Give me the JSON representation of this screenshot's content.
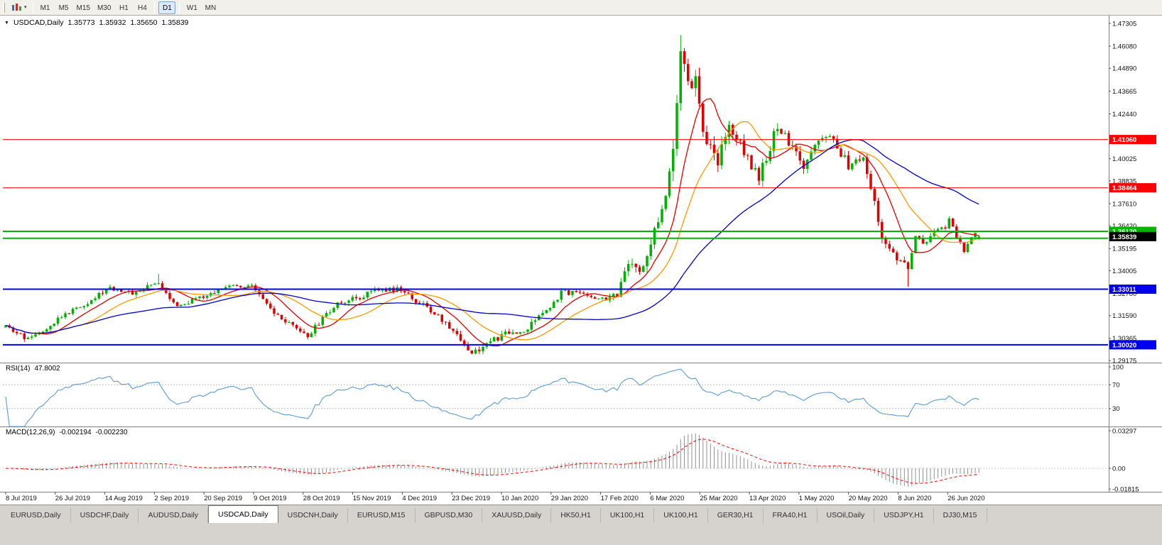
{
  "toolbar": {
    "timeframes": [
      "M1",
      "M5",
      "M15",
      "M30",
      "H1",
      "H4",
      "D1",
      "W1",
      "MN"
    ],
    "active_timeframe": "D1"
  },
  "chart": {
    "title": "USDCAD,Daily",
    "open": "1.35773",
    "high": "1.35932",
    "low": "1.35650",
    "close": "1.35839"
  },
  "rsi": {
    "label": "RSI(14)",
    "value": "47.8002",
    "period": 14,
    "levels": [
      70,
      30
    ],
    "scale_labels": [
      "100",
      "70",
      "30"
    ],
    "line_color": "#5B9BD5"
  },
  "macd": {
    "label": "MACD(12,26,9)",
    "value_main": "-0.002194",
    "value_signal": "-0.002230",
    "fast": 12,
    "slow": 26,
    "signal_period": 9,
    "scale_labels": [
      {
        "text": "0.03297",
        "value": 0.03297
      },
      {
        "text": "0.00",
        "value": 0
      },
      {
        "text": "-0.01815",
        "value": -0.01815
      }
    ],
    "histogram_color": "#909090",
    "signal_color": "#FF0000"
  },
  "tabbar": {
    "active_index": 3,
    "tabs": [
      "EURUSD,Daily",
      "USDCHF,Daily",
      "AUDUSD,Daily",
      "USDCAD,Daily",
      "USDCNH,Daily",
      "EURUSD,M15",
      "GBPUSD,M30",
      "XAUUSD,Daily",
      "HK50,H1",
      "UK100,H1",
      "UK100,H1",
      "GER30,H1",
      "FRA40,H1",
      "USOil,Daily",
      "USDJPY,H1",
      "DJ30,M15"
    ]
  },
  "chart_data": {
    "type": "candlestick",
    "symbol": "USDCAD",
    "timeframe": "Daily",
    "ylim": [
      1.29175,
      1.47305
    ],
    "price_axis_ticks": [
      "1.47305",
      "1.46080",
      "1.44890",
      "1.43665",
      "1.42440",
      "1.40025",
      "1.38835",
      "1.37610",
      "1.36420",
      "1.35195",
      "1.34005",
      "1.32780",
      "1.31590",
      "1.30365",
      "1.29175"
    ],
    "x_axis_dates": [
      "8 Jul 2019",
      "26 Jul 2019",
      "14 Aug 2019",
      "2 Sep 2019",
      "20 Sep 2019",
      "9 Oct 2019",
      "28 Oct 2019",
      "15 Nov 2019",
      "4 Dec 2019",
      "23 Dec 2019",
      "10 Jan 2020",
      "29 Jan 2020",
      "17 Feb 2020",
      "6 Mar 2020",
      "25 Mar 2020",
      "13 Apr 2020",
      "1 May 2020",
      "20 May 2020",
      "8 Jun 2020",
      "26 Jun 2020"
    ],
    "count": 262,
    "close_waypoints": [
      [
        0,
        1.3095
      ],
      [
        5,
        1.304
      ],
      [
        9,
        1.307
      ],
      [
        15,
        1.3155
      ],
      [
        21,
        1.322
      ],
      [
        28,
        1.331
      ],
      [
        34,
        1.328
      ],
      [
        41,
        1.334
      ],
      [
        46,
        1.321
      ],
      [
        54,
        1.3265
      ],
      [
        61,
        1.333
      ],
      [
        66,
        1.331
      ],
      [
        73,
        1.315
      ],
      [
        79,
        1.307
      ],
      [
        81,
        1.305
      ],
      [
        89,
        1.323
      ],
      [
        94,
        1.325
      ],
      [
        99,
        1.33
      ],
      [
        105,
        1.33
      ],
      [
        111,
        1.323
      ],
      [
        115,
        1.317
      ],
      [
        120,
        1.308
      ],
      [
        125,
        1.296
      ],
      [
        129,
        1.3005
      ],
      [
        134,
        1.306
      ],
      [
        139,
        1.3075
      ],
      [
        144,
        1.317
      ],
      [
        149,
        1.328
      ],
      [
        154,
        1.329
      ],
      [
        159,
        1.3245
      ],
      [
        164,
        1.327
      ],
      [
        167,
        1.343
      ],
      [
        170,
        1.339
      ],
      [
        175,
        1.366
      ],
      [
        177,
        1.384
      ],
      [
        179,
        1.401
      ],
      [
        181,
        1.46
      ],
      [
        183,
        1.438
      ],
      [
        185,
        1.444
      ],
      [
        188,
        1.406
      ],
      [
        191,
        1.399
      ],
      [
        194,
        1.419
      ],
      [
        197,
        1.409
      ],
      [
        202,
        1.3895
      ],
      [
        207,
        1.419
      ],
      [
        210,
        1.409
      ],
      [
        214,
        1.3945
      ],
      [
        218,
        1.411
      ],
      [
        222,
        1.41
      ],
      [
        226,
        1.397
      ],
      [
        230,
        1.4
      ],
      [
        233,
        1.378
      ],
      [
        235,
        1.358
      ],
      [
        238,
        1.35
      ],
      [
        241,
        1.343
      ],
      [
        242,
        1.3415
      ],
      [
        244,
        1.359
      ],
      [
        246,
        1.354
      ],
      [
        249,
        1.36
      ],
      [
        252,
        1.364
      ],
      [
        253,
        1.369
      ],
      [
        255,
        1.3576
      ],
      [
        257,
        1.35
      ],
      [
        260,
        1.3605
      ],
      [
        261,
        1.35839
      ]
    ],
    "volatility_waypoints": [
      [
        0,
        0.0016
      ],
      [
        120,
        0.0019
      ],
      [
        125,
        0.0022
      ],
      [
        160,
        0.0017
      ],
      [
        170,
        0.0038
      ],
      [
        181,
        0.0065
      ],
      [
        195,
        0.0045
      ],
      [
        215,
        0.0032
      ],
      [
        235,
        0.003
      ],
      [
        245,
        0.0022
      ],
      [
        261,
        0.0015
      ]
    ],
    "key_candles": [
      {
        "i": 41,
        "high": 1.3383
      },
      {
        "i": 125,
        "low": 1.2951
      },
      {
        "i": 181,
        "high": 1.4668
      },
      {
        "i": 242,
        "low": 1.3315
      }
    ],
    "last_candle": {
      "open": 1.35773,
      "high": 1.35932,
      "low": 1.3565,
      "close": 1.35839
    },
    "candle_colors": {
      "up": "#00B200",
      "down": "#E10000"
    },
    "moving_averages": [
      {
        "period": 10,
        "color": "#E60000"
      },
      {
        "period": 20,
        "color": "#FF9900"
      },
      {
        "period": 50,
        "color": "#0000CD"
      }
    ],
    "horizontal_lines": [
      {
        "price": 1.4106,
        "label": "1.41060",
        "color": "#FF0000",
        "width": 1
      },
      {
        "price": 1.38464,
        "label": "1.38464",
        "color": "#FF0000",
        "width": 1
      },
      {
        "price": 1.3612,
        "label": "1.36120",
        "color": "#00B400",
        "width": 2
      },
      {
        "price": 1.3575,
        "label": null,
        "color": "#00B400",
        "width": 2
      },
      {
        "price": 1.33011,
        "label": "1.33011",
        "color": "#0000F0",
        "width": 2
      },
      {
        "price": 1.3002,
        "label": "1.30020",
        "color": "#0000F0",
        "width": 2
      }
    ],
    "current_price_label": {
      "text": "1.35839",
      "background": "#000000"
    }
  }
}
